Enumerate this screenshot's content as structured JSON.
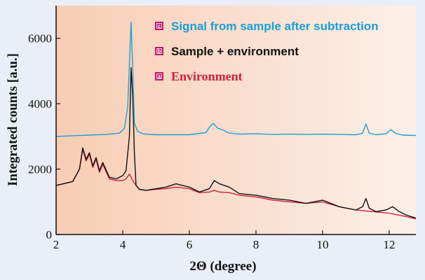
{
  "chart_data": {
    "type": "line",
    "title": "",
    "xlabel": "2Θ (degree)",
    "ylabel": "Integrated counts [a.u.]",
    "xlim": [
      2,
      12.8
    ],
    "ylim": [
      0,
      7000
    ],
    "xticks": [
      2,
      4,
      6,
      8,
      10,
      12
    ],
    "yticks": [
      0,
      2000,
      4000,
      6000
    ],
    "legend_position": "top-center",
    "grid": false,
    "colors": {
      "c": "#1aa0d6",
      "b": "#111111",
      "a": "#d0203a",
      "badge": "#c2186e"
    },
    "series": [
      {
        "id": "c",
        "badge": "c",
        "name": "Signal from sample after subtraction",
        "x": [
          2.0,
          2.5,
          3.0,
          3.5,
          3.9,
          4.05,
          4.15,
          4.2,
          4.25,
          4.3,
          4.35,
          4.45,
          4.6,
          5.0,
          5.5,
          6.0,
          6.5,
          6.62,
          6.72,
          6.85,
          7.0,
          7.2,
          7.5,
          8.0,
          8.5,
          9.0,
          9.5,
          10.0,
          10.5,
          11.0,
          11.2,
          11.3,
          11.4,
          11.6,
          11.9,
          12.05,
          12.2,
          12.4,
          12.8
        ],
        "y": [
          3000,
          3020,
          3040,
          3060,
          3100,
          3250,
          3900,
          5200,
          6500,
          5000,
          3400,
          3150,
          3080,
          3050,
          3050,
          3050,
          3120,
          3300,
          3400,
          3250,
          3200,
          3100,
          3070,
          3080,
          3060,
          3070,
          3060,
          3070,
          3060,
          3050,
          3100,
          3380,
          3100,
          3050,
          3080,
          3200,
          3090,
          3040,
          3030
        ]
      },
      {
        "id": "b",
        "badge": "b",
        "name": "Sample + environment",
        "x": [
          2.0,
          2.5,
          2.7,
          2.8,
          2.9,
          3.0,
          3.1,
          3.2,
          3.3,
          3.4,
          3.6,
          3.8,
          4.0,
          4.1,
          4.2,
          4.25,
          4.3,
          4.35,
          4.4,
          4.5,
          4.7,
          5.0,
          5.3,
          5.6,
          6.0,
          6.3,
          6.6,
          6.75,
          6.9,
          7.2,
          7.5,
          8.0,
          8.5,
          9.0,
          9.5,
          10.0,
          10.5,
          11.0,
          11.2,
          11.3,
          11.4,
          11.6,
          11.9,
          12.1,
          12.3,
          12.5,
          12.8
        ],
        "y": [
          1500,
          1620,
          2000,
          2650,
          2300,
          2500,
          2100,
          2350,
          1950,
          2200,
          1750,
          1700,
          1800,
          1950,
          3000,
          5100,
          4200,
          2500,
          1500,
          1380,
          1350,
          1400,
          1450,
          1550,
          1450,
          1300,
          1400,
          1650,
          1550,
          1450,
          1250,
          1200,
          1100,
          1050,
          950,
          1050,
          850,
          750,
          850,
          1100,
          800,
          700,
          750,
          850,
          700,
          600,
          500
        ]
      },
      {
        "id": "a",
        "badge": "a",
        "name": "Environment",
        "x": [
          2.0,
          2.5,
          2.7,
          2.8,
          2.9,
          3.0,
          3.1,
          3.2,
          3.3,
          3.4,
          3.6,
          3.8,
          4.0,
          4.1,
          4.2,
          4.3,
          4.4,
          4.5,
          4.7,
          5.0,
          5.3,
          5.6,
          6.0,
          6.3,
          6.6,
          6.75,
          6.9,
          7.2,
          7.5,
          8.0,
          8.5,
          9.0,
          9.5,
          10.0,
          10.5,
          11.0,
          11.5,
          12.0,
          12.5,
          12.8
        ],
        "y": [
          1500,
          1620,
          2000,
          2600,
          2250,
          2450,
          2050,
          2300,
          1900,
          2150,
          1700,
          1650,
          1650,
          1700,
          1850,
          1650,
          1500,
          1380,
          1350,
          1380,
          1400,
          1450,
          1400,
          1280,
          1300,
          1350,
          1300,
          1280,
          1200,
          1150,
          1050,
          1000,
          950,
          1000,
          850,
          750,
          700,
          650,
          550,
          480
        ]
      }
    ]
  }
}
